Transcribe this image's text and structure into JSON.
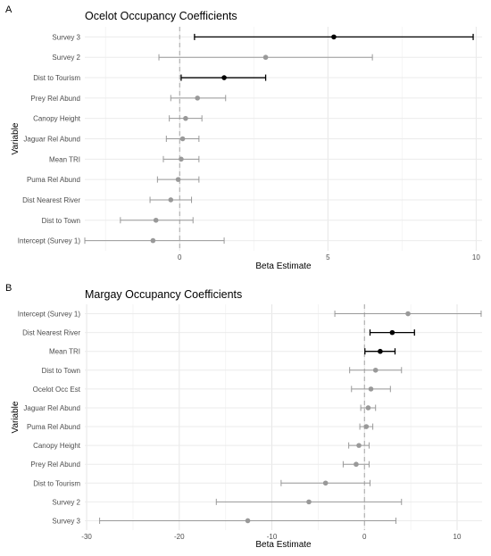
{
  "chart_data": [
    {
      "type": "scatter",
      "panel_label": "A",
      "title": "Ocelot Occupancy Coefficients",
      "xlabel": "Beta Estimate",
      "ylabel": "Variable",
      "xlim": [
        -3.2,
        10.2
      ],
      "xticks": [
        0,
        5,
        10
      ],
      "reference_line": 0,
      "grid": true,
      "colors": {
        "significant": "#000000",
        "nonsignificant": "#999999"
      },
      "points": [
        {
          "label": "Survey 3",
          "estimate": 5.2,
          "low": 0.5,
          "high": 9.9,
          "significant": true
        },
        {
          "label": "Survey 2",
          "estimate": 2.9,
          "low": -0.7,
          "high": 6.5,
          "significant": false
        },
        {
          "label": "Dist to Tourism",
          "estimate": 1.5,
          "low": 0.05,
          "high": 2.9,
          "significant": true
        },
        {
          "label": "Prey Rel Abund",
          "estimate": 0.6,
          "low": -0.3,
          "high": 1.55,
          "significant": false
        },
        {
          "label": "Canopy Height",
          "estimate": 0.2,
          "low": -0.35,
          "high": 0.75,
          "significant": false
        },
        {
          "label": "Jaguar Rel Abund",
          "estimate": 0.1,
          "low": -0.45,
          "high": 0.65,
          "significant": false
        },
        {
          "label": "Mean TRI",
          "estimate": 0.05,
          "low": -0.55,
          "high": 0.65,
          "significant": false
        },
        {
          "label": "Puma Rel Abund",
          "estimate": -0.05,
          "low": -0.75,
          "high": 0.65,
          "significant": false
        },
        {
          "label": "Dist Nearest River",
          "estimate": -0.3,
          "low": -1.0,
          "high": 0.4,
          "significant": false
        },
        {
          "label": "Dist to Town",
          "estimate": -0.8,
          "low": -2.0,
          "high": 0.45,
          "significant": false
        },
        {
          "label": "Intercept (Survey 1)",
          "estimate": -0.9,
          "low": -3.2,
          "high": 1.5,
          "significant": false
        }
      ]
    },
    {
      "type": "scatter",
      "panel_label": "B",
      "title": "Margay Occupancy Coefficients",
      "xlabel": "Beta Estimate",
      "ylabel": "Variable",
      "xlim": [
        -30.2,
        12.7
      ],
      "xticks": [
        -30,
        -20,
        -10,
        0,
        10
      ],
      "reference_line": 0,
      "grid": true,
      "colors": {
        "significant": "#000000",
        "nonsignificant": "#999999"
      },
      "points": [
        {
          "label": "Intercept (Survey 1)",
          "estimate": 4.7,
          "low": -3.2,
          "high": 12.6,
          "significant": false
        },
        {
          "label": "Dist Nearest River",
          "estimate": 3.0,
          "low": 0.6,
          "high": 5.4,
          "significant": true
        },
        {
          "label": "Mean TRI",
          "estimate": 1.7,
          "low": 0.05,
          "high": 3.3,
          "significant": true
        },
        {
          "label": "Dist to Town",
          "estimate": 1.2,
          "low": -1.6,
          "high": 4.0,
          "significant": false
        },
        {
          "label": "Ocelot Occ Est",
          "estimate": 0.7,
          "low": -1.4,
          "high": 2.8,
          "significant": false
        },
        {
          "label": "Jaguar Rel Abund",
          "estimate": 0.4,
          "low": -0.4,
          "high": 1.2,
          "significant": false
        },
        {
          "label": "Puma Rel Abund",
          "estimate": 0.2,
          "low": -0.5,
          "high": 0.9,
          "significant": false
        },
        {
          "label": "Canopy Height",
          "estimate": -0.6,
          "low": -1.7,
          "high": 0.5,
          "significant": false
        },
        {
          "label": "Prey Rel Abund",
          "estimate": -0.9,
          "low": -2.3,
          "high": 0.5,
          "significant": false
        },
        {
          "label": "Dist to Tourism",
          "estimate": -4.2,
          "low": -9.0,
          "high": 0.6,
          "significant": false
        },
        {
          "label": "Survey 2",
          "estimate": -6.0,
          "low": -16.0,
          "high": 4.0,
          "significant": false
        },
        {
          "label": "Survey 3",
          "estimate": -12.6,
          "low": -28.6,
          "high": 3.4,
          "significant": false
        }
      ]
    }
  ]
}
